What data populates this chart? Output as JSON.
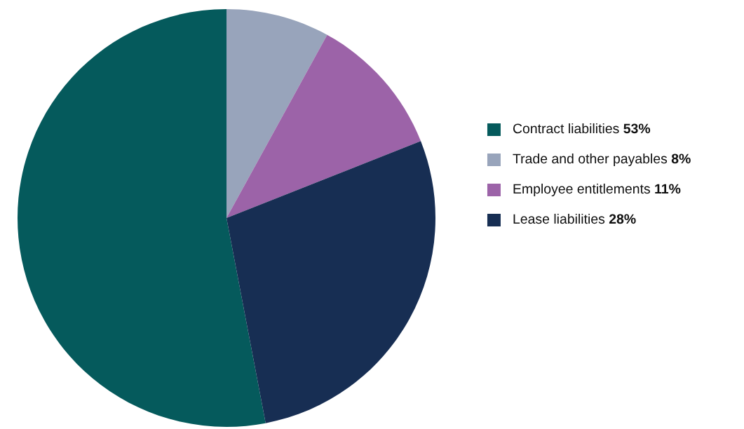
{
  "chart_data": {
    "type": "pie",
    "categories": [
      "Contract liabilities",
      "Trade and other payables",
      "Employee entitlements",
      "Lease liabilities"
    ],
    "values": [
      53,
      8,
      11,
      28
    ],
    "value_labels": [
      "53%",
      "8%",
      "11%",
      "28%"
    ],
    "colors": [
      "#055a5c",
      "#98a4bb",
      "#9c63a8",
      "#172e53"
    ],
    "legend": "right"
  }
}
